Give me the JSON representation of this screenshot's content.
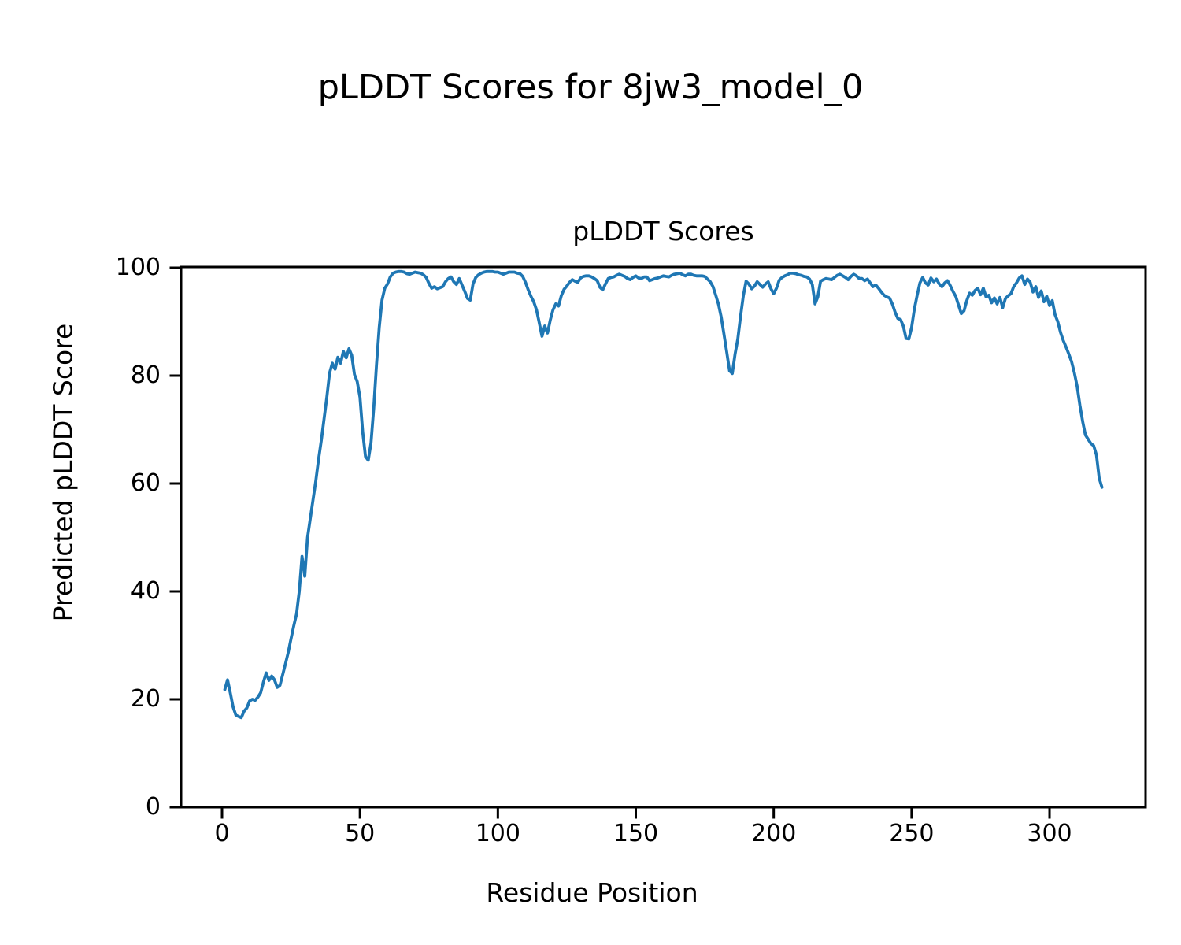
{
  "chart_data": {
    "type": "line",
    "suptitle": "pLDDT Scores for 8jw3_model_0",
    "title": "pLDDT Scores",
    "xlabel": "Residue Position",
    "ylabel": "Predicted pLDDT Score",
    "xlim": [
      -15,
      335
    ],
    "ylim": [
      0,
      100
    ],
    "xticks": [
      0,
      50,
      100,
      150,
      200,
      250,
      300
    ],
    "yticks": [
      0,
      20,
      40,
      60,
      80,
      100
    ],
    "grid": false,
    "legend": "none",
    "line_color": "#1f77b4",
    "axis_color": "#000000",
    "series": [
      {
        "name": "pLDDT",
        "points": [
          [
            1,
            21.8
          ],
          [
            2,
            23.6
          ],
          [
            3,
            21.2
          ],
          [
            4,
            18.6
          ],
          [
            5,
            17.1
          ],
          [
            6,
            16.8
          ],
          [
            7,
            16.6
          ],
          [
            8,
            17.8
          ],
          [
            9,
            18.4
          ],
          [
            10,
            19.7
          ],
          [
            11,
            20.0
          ],
          [
            12,
            19.8
          ],
          [
            13,
            20.4
          ],
          [
            14,
            21.2
          ],
          [
            15,
            23.2
          ],
          [
            16,
            24.9
          ],
          [
            17,
            23.5
          ],
          [
            18,
            24.3
          ],
          [
            19,
            23.6
          ],
          [
            20,
            22.2
          ],
          [
            21,
            22.6
          ],
          [
            22,
            24.6
          ],
          [
            23,
            26.6
          ],
          [
            24,
            28.7
          ],
          [
            25,
            31.2
          ],
          [
            26,
            33.6
          ],
          [
            27,
            35.8
          ],
          [
            28,
            40.0
          ],
          [
            29,
            46.5
          ],
          [
            30,
            42.8
          ],
          [
            31,
            50.0
          ],
          [
            32,
            53.5
          ],
          [
            33,
            57.0
          ],
          [
            34,
            60.5
          ],
          [
            35,
            64.5
          ],
          [
            36,
            68.0
          ],
          [
            37,
            72.0
          ],
          [
            38,
            76.0
          ],
          [
            39,
            80.5
          ],
          [
            40,
            82.3
          ],
          [
            41,
            81.2
          ],
          [
            42,
            83.4
          ],
          [
            43,
            82.3
          ],
          [
            44,
            84.5
          ],
          [
            45,
            83.3
          ],
          [
            46,
            85.0
          ],
          [
            47,
            83.8
          ],
          [
            48,
            80.2
          ],
          [
            49,
            78.9
          ],
          [
            50,
            76.0
          ],
          [
            51,
            69.5
          ],
          [
            52,
            65.0
          ],
          [
            53,
            64.3
          ],
          [
            54,
            67.5
          ],
          [
            55,
            74.0
          ],
          [
            56,
            82.0
          ],
          [
            57,
            89.0
          ],
          [
            58,
            94.0
          ],
          [
            59,
            96.2
          ],
          [
            60,
            97.0
          ],
          [
            61,
            98.3
          ],
          [
            62,
            99.0
          ],
          [
            63,
            99.2
          ],
          [
            64,
            99.3
          ],
          [
            65,
            99.3
          ],
          [
            66,
            99.2
          ],
          [
            67,
            98.9
          ],
          [
            68,
            98.8
          ],
          [
            69,
            99.0
          ],
          [
            70,
            99.2
          ],
          [
            71,
            99.1
          ],
          [
            72,
            99.0
          ],
          [
            73,
            98.7
          ],
          [
            74,
            98.2
          ],
          [
            75,
            97.1
          ],
          [
            76,
            96.2
          ],
          [
            77,
            96.5
          ],
          [
            78,
            96.1
          ],
          [
            79,
            96.3
          ],
          [
            80,
            96.5
          ],
          [
            81,
            97.4
          ],
          [
            82,
            98.0
          ],
          [
            83,
            98.3
          ],
          [
            84,
            97.4
          ],
          [
            85,
            96.9
          ],
          [
            86,
            98.0
          ],
          [
            87,
            96.8
          ],
          [
            88,
            95.6
          ],
          [
            89,
            94.3
          ],
          [
            90,
            94.0
          ],
          [
            91,
            97.0
          ],
          [
            92,
            98.2
          ],
          [
            93,
            98.7
          ],
          [
            94,
            99.0
          ],
          [
            95,
            99.2
          ],
          [
            96,
            99.3
          ],
          [
            97,
            99.3
          ],
          [
            98,
            99.3
          ],
          [
            99,
            99.2
          ],
          [
            100,
            99.2
          ],
          [
            101,
            99.0
          ],
          [
            102,
            98.8
          ],
          [
            103,
            99.0
          ],
          [
            104,
            99.2
          ],
          [
            105,
            99.2
          ],
          [
            106,
            99.2
          ],
          [
            107,
            99.0
          ],
          [
            108,
            98.9
          ],
          [
            109,
            98.4
          ],
          [
            110,
            97.3
          ],
          [
            111,
            95.9
          ],
          [
            112,
            94.7
          ],
          [
            113,
            93.7
          ],
          [
            114,
            92.2
          ],
          [
            115,
            89.8
          ],
          [
            116,
            87.3
          ],
          [
            117,
            89.2
          ],
          [
            118,
            87.9
          ],
          [
            119,
            90.3
          ],
          [
            120,
            92.2
          ],
          [
            121,
            93.3
          ],
          [
            122,
            92.9
          ],
          [
            123,
            94.8
          ],
          [
            124,
            96.0
          ],
          [
            125,
            96.6
          ],
          [
            126,
            97.3
          ],
          [
            127,
            97.8
          ],
          [
            128,
            97.5
          ],
          [
            129,
            97.3
          ],
          [
            130,
            98.1
          ],
          [
            131,
            98.4
          ],
          [
            132,
            98.5
          ],
          [
            133,
            98.5
          ],
          [
            134,
            98.3
          ],
          [
            135,
            98.0
          ],
          [
            136,
            97.6
          ],
          [
            137,
            96.4
          ],
          [
            138,
            95.9
          ],
          [
            139,
            97.0
          ],
          [
            140,
            98.0
          ],
          [
            141,
            98.2
          ],
          [
            142,
            98.3
          ],
          [
            143,
            98.6
          ],
          [
            144,
            98.8
          ],
          [
            145,
            98.6
          ],
          [
            146,
            98.4
          ],
          [
            147,
            98.0
          ],
          [
            148,
            97.8
          ],
          [
            149,
            98.2
          ],
          [
            150,
            98.5
          ],
          [
            151,
            98.1
          ],
          [
            152,
            98.0
          ],
          [
            153,
            98.3
          ],
          [
            154,
            98.3
          ],
          [
            155,
            97.6
          ],
          [
            156,
            97.8
          ],
          [
            157,
            98.0
          ],
          [
            158,
            98.1
          ],
          [
            159,
            98.3
          ],
          [
            160,
            98.5
          ],
          [
            161,
            98.4
          ],
          [
            162,
            98.3
          ],
          [
            163,
            98.6
          ],
          [
            164,
            98.8
          ],
          [
            165,
            98.9
          ],
          [
            166,
            99.0
          ],
          [
            167,
            98.7
          ],
          [
            168,
            98.5
          ],
          [
            169,
            98.8
          ],
          [
            170,
            98.8
          ],
          [
            171,
            98.6
          ],
          [
            172,
            98.5
          ],
          [
            173,
            98.5
          ],
          [
            174,
            98.5
          ],
          [
            175,
            98.4
          ],
          [
            176,
            97.9
          ],
          [
            177,
            97.4
          ],
          [
            178,
            96.5
          ],
          [
            179,
            94.9
          ],
          [
            180,
            93.2
          ],
          [
            181,
            90.8
          ],
          [
            182,
            87.6
          ],
          [
            183,
            84.3
          ],
          [
            184,
            80.9
          ],
          [
            185,
            80.4
          ],
          [
            186,
            84.0
          ],
          [
            187,
            86.8
          ],
          [
            188,
            91.0
          ],
          [
            189,
            94.8
          ],
          [
            190,
            97.5
          ],
          [
            191,
            97.0
          ],
          [
            192,
            96.1
          ],
          [
            193,
            96.6
          ],
          [
            194,
            97.4
          ],
          [
            195,
            96.9
          ],
          [
            196,
            96.4
          ],
          [
            197,
            97.0
          ],
          [
            198,
            97.4
          ],
          [
            199,
            96.1
          ],
          [
            200,
            95.2
          ],
          [
            201,
            96.2
          ],
          [
            202,
            97.7
          ],
          [
            203,
            98.2
          ],
          [
            204,
            98.5
          ],
          [
            205,
            98.7
          ],
          [
            206,
            99.0
          ],
          [
            207,
            99.0
          ],
          [
            208,
            98.9
          ],
          [
            209,
            98.7
          ],
          [
            210,
            98.6
          ],
          [
            211,
            98.4
          ],
          [
            212,
            98.3
          ],
          [
            213,
            97.9
          ],
          [
            214,
            96.9
          ],
          [
            215,
            93.3
          ],
          [
            216,
            94.6
          ],
          [
            217,
            97.5
          ],
          [
            218,
            97.8
          ],
          [
            219,
            98.0
          ],
          [
            220,
            97.9
          ],
          [
            221,
            97.8
          ],
          [
            222,
            98.2
          ],
          [
            223,
            98.6
          ],
          [
            224,
            98.8
          ],
          [
            225,
            98.5
          ],
          [
            226,
            98.2
          ],
          [
            227,
            97.8
          ],
          [
            228,
            98.4
          ],
          [
            229,
            98.8
          ],
          [
            230,
            98.5
          ],
          [
            231,
            98.0
          ],
          [
            232,
            98.0
          ],
          [
            233,
            97.6
          ],
          [
            234,
            97.9
          ],
          [
            235,
            97.2
          ],
          [
            236,
            96.5
          ],
          [
            237,
            96.8
          ],
          [
            238,
            96.2
          ],
          [
            239,
            95.5
          ],
          [
            240,
            94.9
          ],
          [
            241,
            94.6
          ],
          [
            242,
            94.4
          ],
          [
            243,
            93.3
          ],
          [
            244,
            91.8
          ],
          [
            245,
            90.6
          ],
          [
            246,
            90.4
          ],
          [
            247,
            89.2
          ],
          [
            248,
            86.9
          ],
          [
            249,
            86.8
          ],
          [
            250,
            88.9
          ],
          [
            251,
            92.4
          ],
          [
            252,
            94.9
          ],
          [
            253,
            97.2
          ],
          [
            254,
            98.2
          ],
          [
            255,
            97.2
          ],
          [
            256,
            96.8
          ],
          [
            257,
            98.1
          ],
          [
            258,
            97.4
          ],
          [
            259,
            97.9
          ],
          [
            260,
            97.0
          ],
          [
            261,
            96.5
          ],
          [
            262,
            97.2
          ],
          [
            263,
            97.6
          ],
          [
            264,
            96.7
          ],
          [
            265,
            95.6
          ],
          [
            266,
            94.7
          ],
          [
            267,
            93.1
          ],
          [
            268,
            91.5
          ],
          [
            269,
            92.0
          ],
          [
            270,
            93.9
          ],
          [
            271,
            95.3
          ],
          [
            272,
            94.9
          ],
          [
            273,
            95.8
          ],
          [
            274,
            96.2
          ],
          [
            275,
            95.0
          ],
          [
            276,
            96.2
          ],
          [
            277,
            94.6
          ],
          [
            278,
            94.9
          ],
          [
            279,
            93.5
          ],
          [
            280,
            94.4
          ],
          [
            281,
            93.3
          ],
          [
            282,
            94.5
          ],
          [
            283,
            92.6
          ],
          [
            284,
            94.3
          ],
          [
            285,
            94.8
          ],
          [
            286,
            95.2
          ],
          [
            287,
            96.5
          ],
          [
            288,
            97.2
          ],
          [
            289,
            98.1
          ],
          [
            290,
            98.5
          ],
          [
            291,
            96.9
          ],
          [
            292,
            97.9
          ],
          [
            293,
            97.3
          ],
          [
            294,
            95.5
          ],
          [
            295,
            96.5
          ],
          [
            296,
            94.5
          ],
          [
            297,
            95.7
          ],
          [
            298,
            93.7
          ],
          [
            299,
            94.7
          ],
          [
            300,
            93.0
          ],
          [
            301,
            93.9
          ],
          [
            302,
            91.3
          ],
          [
            303,
            90.0
          ],
          [
            304,
            88.0
          ],
          [
            305,
            86.5
          ],
          [
            306,
            85.3
          ],
          [
            307,
            84.0
          ],
          [
            308,
            82.6
          ],
          [
            309,
            80.5
          ],
          [
            310,
            78.0
          ],
          [
            311,
            74.5
          ],
          [
            312,
            71.5
          ],
          [
            313,
            69.0
          ],
          [
            314,
            68.2
          ],
          [
            315,
            67.4
          ],
          [
            316,
            67.0
          ],
          [
            317,
            65.3
          ],
          [
            318,
            61.0
          ],
          [
            319,
            59.3
          ]
        ]
      }
    ]
  }
}
